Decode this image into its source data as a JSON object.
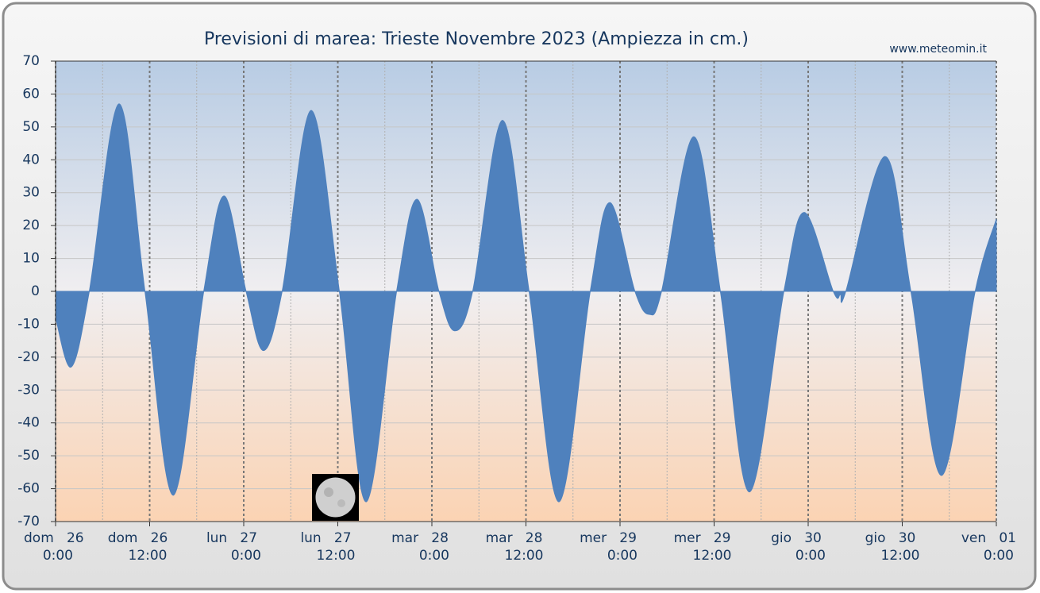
{
  "chart_data": {
    "type": "area",
    "title": "Previsioni di marea: Trieste Novembre 2023 (Ampiezza in cm.)",
    "source": "www.meteomin.it",
    "color": "#4f81bd",
    "grid": true,
    "x": [
      0,
      2.0,
      4.3,
      8.1,
      11.4,
      15.0,
      18.9,
      21.5,
      24.3,
      26.5,
      28.9,
      32.6,
      36.2,
      39.6,
      43.5,
      46.1,
      48.9,
      50.9,
      53.2,
      57.0,
      60.4,
      64.2,
      68.2,
      70.7,
      73.9,
      75.7,
      77.3,
      81.4,
      84.8,
      88.5,
      92.9,
      95.5,
      99.2,
      100.1,
      100.8,
      105.8,
      109.1,
      113.0,
      117.3,
      120
    ],
    "values": [
      -8,
      -23,
      0,
      57,
      0,
      -62,
      0,
      29,
      0,
      -18,
      0,
      55,
      0,
      -64,
      0,
      28,
      0,
      -12,
      0,
      52,
      0,
      -64,
      0,
      27,
      0,
      -7,
      0,
      47,
      0,
      -61,
      0,
      24,
      0,
      -1,
      0,
      41,
      0,
      -56,
      0,
      22
    ],
    "xlim": [
      0,
      120
    ],
    "xticks": [
      {
        "value": 0,
        "label": "dom   26",
        "time": "0:00"
      },
      {
        "value": 12,
        "label": "dom   26",
        "time": "12:00"
      },
      {
        "value": 24,
        "label": "lun   27",
        "time": "0:00"
      },
      {
        "value": 36,
        "label": "lun   27",
        "time": "12:00"
      },
      {
        "value": 48,
        "label": "mar   28",
        "time": "0:00"
      },
      {
        "value": 60,
        "label": "mar   28",
        "time": "12:00"
      },
      {
        "value": 72,
        "label": "mer   29",
        "time": "0:00"
      },
      {
        "value": 84,
        "label": "mer   29",
        "time": "12:00"
      },
      {
        "value": 96,
        "label": "gio   30",
        "time": "0:00"
      },
      {
        "value": 108,
        "label": "gio   30",
        "time": "12:00"
      },
      {
        "value": 120,
        "label": "ven   01",
        "time": "0:00"
      }
    ],
    "ylim": [
      -70,
      70
    ],
    "yticks": [
      70,
      60,
      50,
      40,
      30,
      20,
      10,
      0,
      -10,
      -20,
      -30,
      -40,
      -50,
      -60,
      -70
    ]
  }
}
